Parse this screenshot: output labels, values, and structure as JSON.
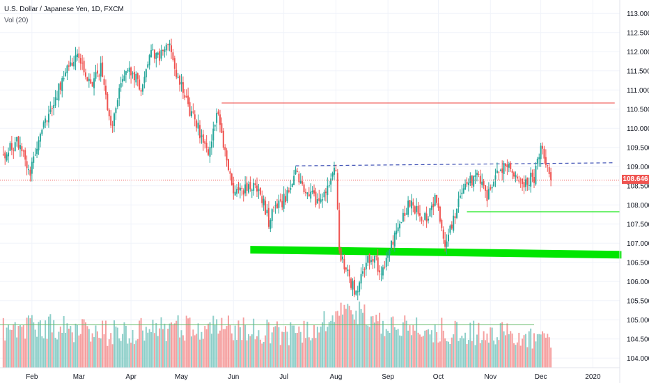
{
  "legend": {
    "symbol_title": "U.S. Dollar / Japanese Yen, 1D, FXCM",
    "volume_label": "Vol (20)"
  },
  "last_price_label": "108.646",
  "colors": {
    "up": "#26a69a",
    "down": "#ef5350",
    "vol_up": "#8ecfc9",
    "vol_down": "#f5a0a0",
    "resistance": "#ef5350",
    "dashed_trend": "#3f51b5",
    "support_zone": "#00e600",
    "minor_support": "#00e600",
    "volume_ma": "#66bb6a",
    "last_price_line": "#ef5350",
    "grid": "#f0f3fa",
    "text": "#131722"
  },
  "chart_data": {
    "type": "candlestick",
    "title": "U.S. Dollar / Japanese Yen, 1D, FXCM",
    "y_axis": {
      "position": "right",
      "range": [
        103.75,
        113.35
      ],
      "ticks": [
        "104.000",
        "104.500",
        "105.000",
        "105.500",
        "106.000",
        "106.500",
        "107.000",
        "107.500",
        "108.000",
        "108.500",
        "109.000",
        "109.500",
        "110.000",
        "110.500",
        "111.000",
        "111.500",
        "112.000",
        "112.500",
        "113.000"
      ]
    },
    "x_axis": {
      "labels": [
        {
          "label": "Feb",
          "day": 17
        },
        {
          "label": "Mar",
          "day": 45
        },
        {
          "label": "Apr",
          "day": 76
        },
        {
          "label": "May",
          "day": 106
        },
        {
          "label": "Jun",
          "day": 137
        },
        {
          "label": "Jul",
          "day": 167
        },
        {
          "label": "Aug",
          "day": 198
        },
        {
          "label": "Sep",
          "day": 229
        },
        {
          "label": "Oct",
          "day": 259
        },
        {
          "label": "Nov",
          "day": 290
        },
        {
          "label": "Dec",
          "day": 320
        },
        {
          "label": "2020",
          "day": 351
        }
      ],
      "day_range": [
        -2,
        367
      ],
      "last_day": 326
    },
    "grid": true,
    "last_price": 108.646,
    "price_path": [
      [
        0,
        109.3
      ],
      [
        8,
        109.6
      ],
      [
        16,
        108.9
      ],
      [
        22,
        110.0
      ],
      [
        30,
        110.7
      ],
      [
        38,
        111.6
      ],
      [
        45,
        111.9
      ],
      [
        52,
        111.0
      ],
      [
        58,
        111.6
      ],
      [
        64,
        110.0
      ],
      [
        70,
        111.2
      ],
      [
        76,
        111.5
      ],
      [
        82,
        111.0
      ],
      [
        88,
        112.0
      ],
      [
        94,
        111.9
      ],
      [
        99,
        112.1
      ],
      [
        105,
        111.2
      ],
      [
        110,
        110.6
      ],
      [
        116,
        110.0
      ],
      [
        122,
        109.3
      ],
      [
        127,
        110.4
      ],
      [
        133,
        109.3
      ],
      [
        137,
        108.2
      ],
      [
        145,
        108.4
      ],
      [
        152,
        108.5
      ],
      [
        158,
        107.6
      ],
      [
        163,
        107.9
      ],
      [
        168,
        108.2
      ],
      [
        174,
        108.8
      ],
      [
        180,
        108.4
      ],
      [
        186,
        108.1
      ],
      [
        192,
        108.3
      ],
      [
        198,
        108.9
      ],
      [
        200,
        106.8
      ],
      [
        205,
        106.2
      ],
      [
        210,
        105.7
      ],
      [
        216,
        106.5
      ],
      [
        222,
        106.5
      ],
      [
        226,
        106.2
      ],
      [
        230,
        106.8
      ],
      [
        236,
        107.5
      ],
      [
        242,
        108.1
      ],
      [
        246,
        107.8
      ],
      [
        252,
        107.6
      ],
      [
        258,
        108.2
      ],
      [
        262,
        107.0
      ],
      [
        266,
        107.3
      ],
      [
        272,
        108.3
      ],
      [
        278,
        108.6
      ],
      [
        284,
        108.7
      ],
      [
        288,
        108.2
      ],
      [
        294,
        108.9
      ],
      [
        300,
        109.1
      ],
      [
        306,
        108.8
      ],
      [
        310,
        108.6
      ],
      [
        316,
        108.7
      ],
      [
        320,
        109.5
      ],
      [
        324,
        108.9
      ],
      [
        326,
        108.646
      ]
    ],
    "candles_note_range": [
      105.6,
      112.4
    ],
    "volume": {
      "range": [
        0,
        1
      ],
      "ma_level": 0.57,
      "path": [
        [
          0,
          0.5
        ],
        [
          30,
          0.55
        ],
        [
          60,
          0.45
        ],
        [
          90,
          0.5
        ],
        [
          120,
          0.55
        ],
        [
          150,
          0.5
        ],
        [
          180,
          0.45
        ],
        [
          200,
          0.7
        ],
        [
          215,
          0.75
        ],
        [
          230,
          0.55
        ],
        [
          260,
          0.5
        ],
        [
          290,
          0.45
        ],
        [
          326,
          0.4
        ]
      ]
    },
    "annotations": [
      {
        "type": "horizontal_line",
        "name": "resistance",
        "style": "solid",
        "price": 110.66,
        "from_day": 130,
        "to_day": 364,
        "color": "#ef5350"
      },
      {
        "type": "trend_line",
        "name": "dashed-trend",
        "style": "dashed",
        "from": [
          174,
          109.02
        ],
        "to": [
          364,
          109.1
        ],
        "color": "#3f51b5"
      },
      {
        "type": "zone",
        "name": "support-zone",
        "from": [
          147,
          106.83
        ],
        "to": [
          368,
          106.7
        ],
        "thickness": 0.2,
        "color": "#00e600"
      },
      {
        "type": "horizontal_line",
        "name": "minor-support",
        "style": "solid",
        "price": 107.82,
        "from_day": 276,
        "to_day": 367,
        "color": "#00e600"
      },
      {
        "type": "horizontal_line",
        "name": "volume-ma",
        "style": "solid",
        "panel": "volume",
        "level": 0.57,
        "from_day": -2,
        "to_day": 316,
        "color": "#66bb6a"
      }
    ]
  }
}
